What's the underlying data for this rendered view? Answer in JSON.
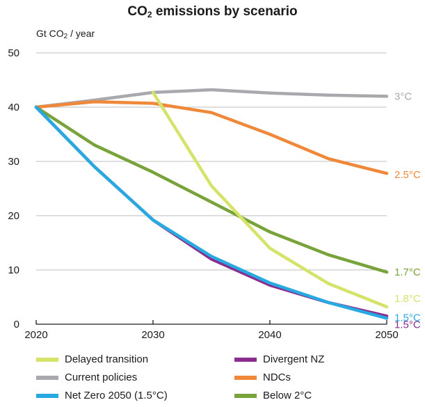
{
  "chart_data": {
    "type": "line",
    "title": "CO2 emissions by scenario",
    "title_parts": [
      "CO",
      "2",
      " emissions by scenario"
    ],
    "ylabel": "Gt CO2 / year",
    "ylabel_parts": [
      "Gt CO",
      "2",
      " / year"
    ],
    "xlabel": "",
    "xlim": [
      2020,
      2050
    ],
    "ylim": [
      0,
      50
    ],
    "x_ticks": [
      2020,
      2030,
      2040,
      2050
    ],
    "y_ticks": [
      0,
      10,
      20,
      30,
      40,
      50
    ],
    "grid": "horizontal",
    "legend_position": "bottom",
    "series": [
      {
        "name": "Current policies",
        "color": "#a7a9ac",
        "x": [
          2020,
          2025,
          2030,
          2035,
          2040,
          2045,
          2050
        ],
        "values": [
          40,
          41.3,
          42.7,
          43.2,
          42.6,
          42.2,
          42
        ],
        "end_label": "3°C"
      },
      {
        "name": "NDCs",
        "color": "#f0883a",
        "x": [
          2020,
          2025,
          2030,
          2035,
          2040,
          2045,
          2050
        ],
        "values": [
          40,
          41,
          40.7,
          39,
          35,
          30.5,
          27.8
        ],
        "end_label": "2.5°C"
      },
      {
        "name": "Below 2°C",
        "color": "#78a33b",
        "x": [
          2020,
          2025,
          2030,
          2035,
          2040,
          2045,
          2050
        ],
        "values": [
          40,
          33,
          28,
          22.5,
          17,
          12.8,
          9.6
        ],
        "end_label": "1.7°C"
      },
      {
        "name": "Delayed transition",
        "color": "#d5e36a",
        "x": [
          2030,
          2035,
          2040,
          2045,
          2050
        ],
        "values": [
          42.7,
          25.5,
          14,
          7.5,
          3.2
        ],
        "end_label": "1.8°C"
      },
      {
        "name": "Divergent NZ",
        "color": "#8a2d8e",
        "x": [
          2020,
          2025,
          2030,
          2035,
          2040,
          2045,
          2050
        ],
        "values": [
          40,
          29,
          19.2,
          12,
          7.2,
          4,
          1.5
        ],
        "end_label": "1.5°C"
      },
      {
        "name": "Net Zero 2050 (1.5°C)",
        "color": "#27aae1",
        "x": [
          2020,
          2025,
          2030,
          2035,
          2040,
          2045,
          2050
        ],
        "values": [
          40,
          29,
          19.2,
          12.5,
          7.6,
          4,
          1.1
        ],
        "end_label": "1.5°C"
      }
    ],
    "legend_order": [
      "Delayed transition",
      "Divergent NZ",
      "Current policies",
      "NDCs",
      "Net Zero 2050 (1.5°C)",
      "Below 2°C"
    ]
  }
}
